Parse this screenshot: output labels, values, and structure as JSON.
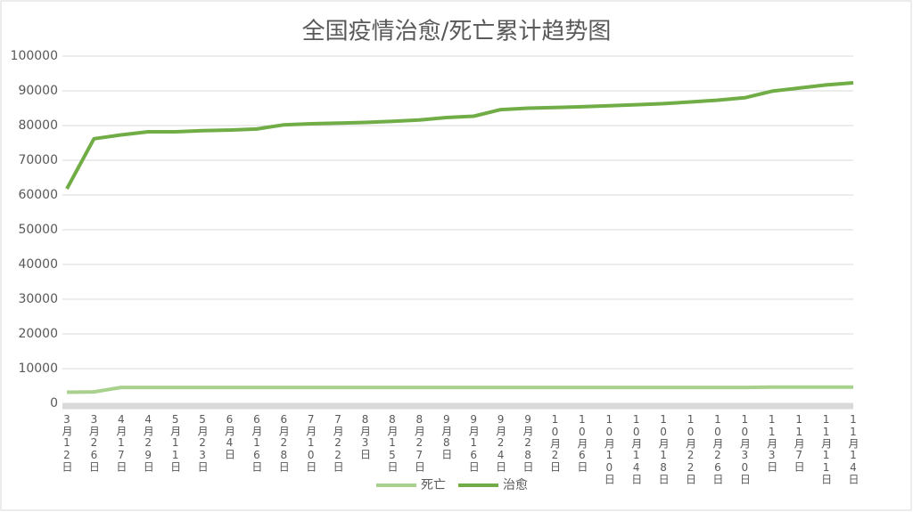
{
  "chart_data": {
    "type": "line",
    "title": "全国疫情治愈/死亡累计趋势图",
    "categories": [
      "3月12日",
      "3月26日",
      "4月17日",
      "4月29日",
      "5月11日",
      "5月23日",
      "6月4日",
      "6月16日",
      "6月28日",
      "7月10日",
      "7月22日",
      "8月3日",
      "8月15日",
      "8月27日",
      "9月8日",
      "9月16日",
      "9月24日",
      "9月28日",
      "10月2日",
      "10月6日",
      "10月10日",
      "10月14日",
      "10月18日",
      "10月22日",
      "10月26日",
      "10月30日",
      "11月3日",
      "11月7日",
      "11月11日",
      "11月14日"
    ],
    "series": [
      {
        "name": "死亡",
        "color": "#a9d18e",
        "values": [
          3200,
          3300,
          4600,
          4600,
          4600,
          4600,
          4600,
          4600,
          4600,
          4600,
          4600,
          4600,
          4600,
          4600,
          4600,
          4600,
          4600,
          4600,
          4600,
          4600,
          4600,
          4600,
          4600,
          4600,
          4600,
          4600,
          4700,
          4700,
          4700,
          4700
        ]
      },
      {
        "name": "治愈",
        "color": "#70ad47",
        "values": [
          61800,
          76200,
          77300,
          78200,
          78200,
          78500,
          78700,
          79000,
          80200,
          80500,
          80700,
          80900,
          81200,
          81600,
          82300,
          82700,
          84600,
          85000,
          85200,
          85400,
          85700,
          86000,
          86300,
          86800,
          87300,
          88000,
          89900,
          90800,
          91700,
          92300
        ]
      }
    ],
    "ylim": [
      0,
      100000
    ],
    "yticks": [
      0,
      10000,
      20000,
      30000,
      40000,
      50000,
      60000,
      70000,
      80000,
      90000,
      100000
    ],
    "grid": true,
    "legend": "bottom"
  }
}
